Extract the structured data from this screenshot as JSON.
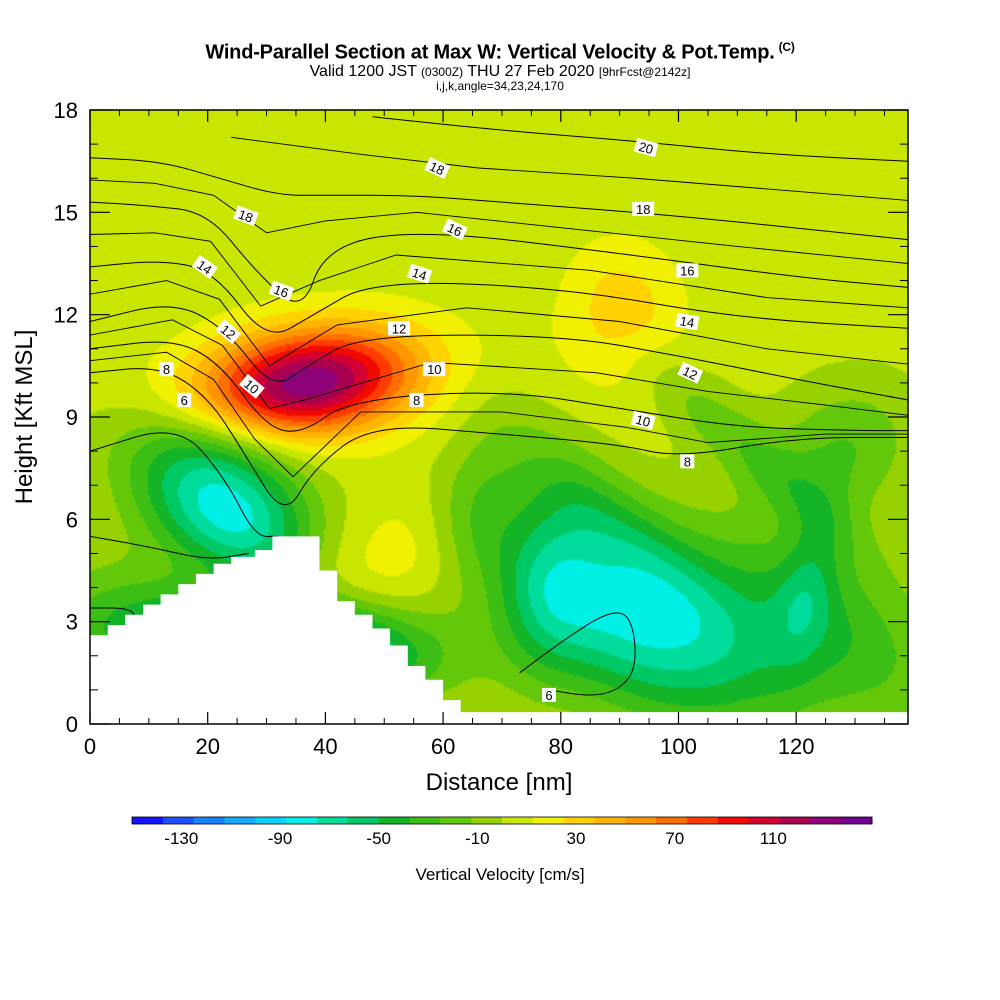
{
  "title": {
    "main": "Wind-Parallel Section at Max W: Vertical Velocity & Pot.Temp.",
    "copyright": "(C)",
    "valid_prefix": "Valid 1200 JST",
    "valid_utc": "(0300Z)",
    "valid_date": "THU 27 Feb 2020",
    "forecast": "[9hrFcst@2142z]",
    "indices": "i,j,k,angle=34,23,24,170"
  },
  "chart_data": {
    "type": "heatmap",
    "xlabel": "Distance [nm]",
    "ylabel": "Height [Kft MSL]",
    "xlim": [
      0,
      139
    ],
    "ylim": [
      0,
      18
    ],
    "x_ticks": [
      0,
      20,
      40,
      60,
      80,
      100,
      120
    ],
    "y_ticks": [
      0,
      3,
      6,
      9,
      12,
      15,
      18
    ],
    "colorbar": {
      "label": "Vertical Velocity [cm/s]",
      "tick_labels": [
        "-130",
        "-90",
        "-50",
        "-10",
        "30",
        "70",
        "110"
      ],
      "tick_values": [
        -130,
        -90,
        -50,
        -10,
        30,
        70,
        110
      ],
      "range": [
        -150,
        150
      ],
      "colors": [
        "#1414ff",
        "#1e50ff",
        "#1a82ff",
        "#14aaff",
        "#0ad2ff",
        "#00f0e6",
        "#00dc9b",
        "#00c864",
        "#14b428",
        "#3cbe14",
        "#64c80a",
        "#96d200",
        "#c8e600",
        "#f0f000",
        "#ffd200",
        "#ffb400",
        "#ff9600",
        "#ff6e00",
        "#ff3c00",
        "#f00a00",
        "#d20032",
        "#aa0050",
        "#8c0078",
        "#6e0096"
      ]
    },
    "terrain": [
      [
        0,
        0
      ],
      [
        0,
        2.6
      ],
      [
        3,
        2.6
      ],
      [
        3,
        2.9
      ],
      [
        6,
        2.9
      ],
      [
        6,
        3.2
      ],
      [
        9,
        3.2
      ],
      [
        9,
        3.5
      ],
      [
        12,
        3.5
      ],
      [
        12,
        3.8
      ],
      [
        15,
        3.8
      ],
      [
        15,
        4.1
      ],
      [
        18,
        4.1
      ],
      [
        18,
        4.4
      ],
      [
        21,
        4.4
      ],
      [
        21,
        4.7
      ],
      [
        24,
        4.7
      ],
      [
        24,
        4.9
      ],
      [
        28,
        4.9
      ],
      [
        28,
        5.1
      ],
      [
        31,
        5.1
      ],
      [
        31,
        5.5
      ],
      [
        39,
        5.5
      ],
      [
        39,
        4.5
      ],
      [
        42,
        4.5
      ],
      [
        42,
        3.6
      ],
      [
        45,
        3.6
      ],
      [
        45,
        3.2
      ],
      [
        48,
        3.2
      ],
      [
        48,
        2.8
      ],
      [
        51,
        2.8
      ],
      [
        51,
        2.3
      ],
      [
        54,
        2.3
      ],
      [
        54,
        1.7
      ],
      [
        57,
        1.7
      ],
      [
        57,
        1.3
      ],
      [
        60,
        1.3
      ],
      [
        60,
        0.7
      ],
      [
        63,
        0.7
      ],
      [
        63,
        0.35
      ],
      [
        139,
        0.35
      ],
      [
        139,
        0
      ]
    ],
    "w_field": [
      [
        0,
        1,
        5,
        2,
        1,
        0,
        5,
        30
      ],
      [
        15,
        1,
        10,
        8,
        2,
        0,
        6,
        28
      ],
      [
        20,
        -40,
        15,
        8,
        1.5,
        -20,
        7,
        25
      ],
      [
        24,
        -80,
        14,
        6,
        1.8,
        -30,
        6,
        30
      ],
      [
        33,
        -120,
        22,
        2.3,
        1.5,
        -25,
        5,
        25
      ],
      [
        37,
        130,
        18,
        10,
        1.6,
        25,
        5,
        25
      ],
      [
        42,
        20,
        12,
        4,
        2,
        15,
        12,
        40
      ],
      [
        60,
        20,
        11,
        5,
        2,
        -5,
        5,
        25
      ],
      [
        65,
        -25,
        8,
        6,
        2.5,
        10,
        6,
        30
      ],
      [
        78,
        -25,
        8,
        4,
        3,
        5,
        6,
        30
      ],
      [
        88,
        -25,
        10,
        6,
        3,
        -50,
        6,
        30
      ],
      [
        112,
        -25,
        8,
        8,
        3,
        -60,
        6,
        30
      ],
      [
        122,
        -25,
        5,
        4,
        2.2,
        10,
        6,
        30
      ],
      [
        128,
        -30,
        12,
        8,
        2,
        10,
        6,
        30
      ],
      [
        100,
        -50,
        17,
        3,
        3,
        -40,
        6,
        30
      ],
      [
        85,
        -50,
        17,
        3,
        3,
        -40,
        6,
        30
      ],
      [
        125,
        -40,
        17,
        3,
        3,
        -40,
        6,
        30
      ],
      [
        3,
        -25,
        13,
        3,
        2,
        0,
        5,
        30
      ],
      [
        90,
        30,
        10,
        12,
        2,
        0,
        6,
        30
      ]
    ],
    "contours": [
      {
        "label": "6",
        "points": [
          [
            0,
            8
          ],
          [
            15,
            8.8
          ],
          [
            23,
            7.2
          ],
          [
            28,
            5.5
          ],
          [
            32,
            5.5
          ]
        ]
      },
      {
        "label": "6",
        "points": [
          [
            0,
            5.5
          ],
          [
            10,
            5.2
          ],
          [
            20,
            4.8
          ],
          [
            27,
            5
          ]
        ]
      },
      {
        "label": "6",
        "points": [
          [
            0,
            3.4
          ],
          [
            7,
            3.4
          ],
          [
            8,
            3
          ]
        ]
      },
      {
        "label": "6",
        "points": [
          [
            73,
            1.5
          ],
          [
            80,
            2.4
          ],
          [
            88,
            3.3
          ],
          [
            92,
            3.2
          ],
          [
            93,
            1.7
          ],
          [
            90,
            1
          ],
          [
            85,
            0.8
          ],
          [
            78,
            1
          ]
        ]
      },
      {
        "label": "8",
        "points": [
          [
            0,
            10.3
          ],
          [
            12,
            10.5
          ],
          [
            20,
            9.6
          ],
          [
            26,
            8
          ],
          [
            33,
            6
          ],
          [
            38,
            7.5
          ],
          [
            48,
            8.8
          ],
          [
            70,
            8.5
          ],
          [
            90,
            8.2
          ],
          [
            100,
            7.8
          ],
          [
            120,
            8.4
          ],
          [
            139,
            8.4
          ]
        ]
      },
      {
        "label": "10",
        "points": [
          [
            0,
            11
          ],
          [
            14,
            11.3
          ],
          [
            22,
            10.6
          ],
          [
            30,
            8.7
          ],
          [
            36,
            8.5
          ],
          [
            44,
            9.5
          ],
          [
            70,
            9.8
          ],
          [
            92,
            9.2
          ],
          [
            110,
            8.7
          ],
          [
            130,
            8.6
          ],
          [
            139,
            8.6
          ]
        ]
      },
      {
        "label": "12",
        "points": [
          [
            0,
            11.8
          ],
          [
            14,
            12.4
          ],
          [
            23,
            11.6
          ],
          [
            31,
            9.8
          ],
          [
            37,
            10.5
          ],
          [
            46,
            11.4
          ],
          [
            80,
            11.4
          ],
          [
            100,
            10.8
          ],
          [
            120,
            10.1
          ],
          [
            139,
            9.5
          ]
        ]
      },
      {
        "label": "14",
        "points": [
          [
            0,
            13.4
          ],
          [
            12,
            13.6
          ],
          [
            21,
            13.3
          ],
          [
            30,
            11.2
          ],
          [
            38,
            12
          ],
          [
            48,
            13
          ],
          [
            80,
            12.8
          ],
          [
            110,
            11.9
          ],
          [
            139,
            11.6
          ]
        ]
      },
      {
        "label": "16",
        "points": [
          [
            0,
            15.3
          ],
          [
            10,
            15.2
          ],
          [
            20,
            15
          ],
          [
            28,
            13.3
          ],
          [
            36,
            12
          ],
          [
            40,
            14
          ],
          [
            56,
            14.5
          ],
          [
            90,
            13.8
          ],
          [
            120,
            13.1
          ],
          [
            139,
            12.8
          ]
        ]
      },
      {
        "label": "18",
        "points": [
          [
            0,
            16.6
          ],
          [
            12,
            16.5
          ],
          [
            22,
            16
          ],
          [
            32,
            15.5
          ],
          [
            40,
            15.5
          ],
          [
            55,
            15.5
          ],
          [
            70,
            15.3
          ],
          [
            100,
            14.9
          ],
          [
            139,
            14.2
          ]
        ]
      },
      {
        "label": "20",
        "points": [
          [
            48,
            17.8
          ],
          [
            70,
            17.4
          ],
          [
            92,
            17.1
          ],
          [
            115,
            16.7
          ],
          [
            139,
            16.5
          ]
        ]
      }
    ],
    "contour_labels": [
      {
        "text": "6",
        "x": 16,
        "y": 9.5,
        "angle": 0
      },
      {
        "text": "8",
        "x": 13,
        "y": 10.4,
        "angle": 0
      },
      {
        "text": "10",
        "x": 27.5,
        "y": 9.9,
        "angle": 40
      },
      {
        "text": "12",
        "x": 23.5,
        "y": 11.5,
        "angle": 40
      },
      {
        "text": "14",
        "x": 19.5,
        "y": 13.4,
        "angle": 35
      },
      {
        "text": "16",
        "x": 32.5,
        "y": 12.7,
        "angle": 20
      },
      {
        "text": "18",
        "x": 26.5,
        "y": 14.9,
        "angle": 20
      },
      {
        "text": "8",
        "x": 55.5,
        "y": 9.5,
        "angle": 0
      },
      {
        "text": "10",
        "x": 58.5,
        "y": 10.4,
        "angle": 0
      },
      {
        "text": "12",
        "x": 52.5,
        "y": 11.6,
        "angle": 0
      },
      {
        "text": "14",
        "x": 56,
        "y": 13.2,
        "angle": 18
      },
      {
        "text": "16",
        "x": 62,
        "y": 14.5,
        "angle": 25
      },
      {
        "text": "18",
        "x": 59,
        "y": 16.3,
        "angle": 25
      },
      {
        "text": "6",
        "x": 78,
        "y": 0.85,
        "angle": 0
      },
      {
        "text": "10",
        "x": 94,
        "y": 8.9,
        "angle": 15
      },
      {
        "text": "8",
        "x": 101.5,
        "y": 7.7,
        "angle": 0
      },
      {
        "text": "12",
        "x": 102,
        "y": 10.3,
        "angle": 25
      },
      {
        "text": "14",
        "x": 101.5,
        "y": 11.8,
        "angle": 10
      },
      {
        "text": "16",
        "x": 101.5,
        "y": 13.3,
        "angle": 0
      },
      {
        "text": "18",
        "x": 94,
        "y": 15.1,
        "angle": 0
      },
      {
        "text": "20",
        "x": 94.5,
        "y": 16.9,
        "angle": 15
      }
    ]
  }
}
